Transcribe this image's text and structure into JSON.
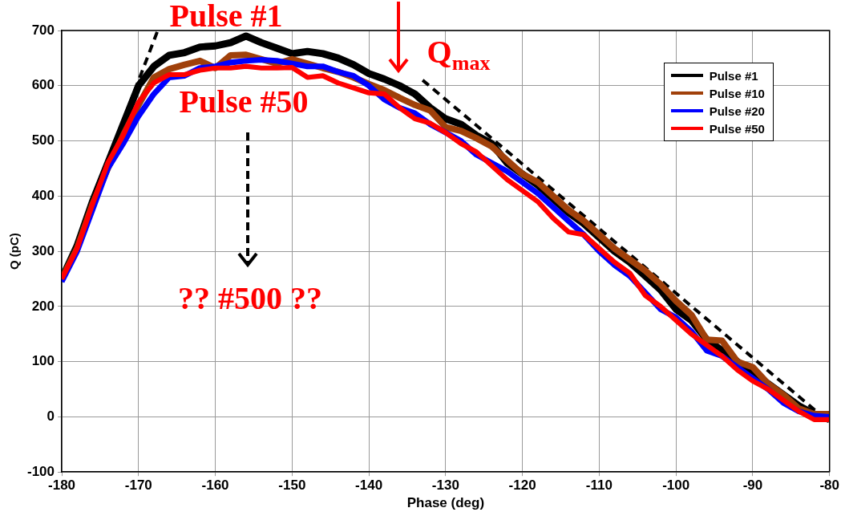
{
  "chart_data": {
    "type": "line",
    "xlabel": "Phase (deg)",
    "ylabel": "Q (pC)",
    "x": [
      -180,
      -178,
      -176,
      -174,
      -172,
      -170,
      -168,
      -166,
      -164,
      -162,
      -160,
      -158,
      -156,
      -154,
      -152,
      -150,
      -148,
      -146,
      -144,
      -142,
      -140,
      -138,
      -136,
      -134,
      -132,
      -130,
      -128,
      -126,
      -124,
      -122,
      -120,
      -118,
      -116,
      -114,
      -112,
      -110,
      -108,
      -106,
      -104,
      -102,
      -100,
      -98,
      -96,
      -94,
      -92,
      -90,
      -88,
      -86,
      -84,
      -82,
      -80
    ],
    "series": [
      {
        "name": "Pulse #1",
        "color": "#000000",
        "values": [
          250,
          310,
          390,
          460,
          530,
          600,
          635,
          655,
          660,
          670,
          672,
          678,
          690,
          678,
          668,
          658,
          662,
          658,
          650,
          638,
          622,
          612,
          600,
          585,
          560,
          540,
          530,
          510,
          495,
          460,
          440,
          420,
          395,
          370,
          350,
          325,
          300,
          280,
          255,
          230,
          195,
          175,
          140,
          120,
          100,
          80,
          60,
          40,
          20,
          5,
          -5
        ]
      },
      {
        "name": "Pulse #10",
        "color": "#a0400a",
        "values": [
          250,
          305,
          385,
          450,
          510,
          565,
          615,
          630,
          638,
          645,
          632,
          655,
          656,
          648,
          640,
          648,
          640,
          632,
          625,
          615,
          603,
          592,
          578,
          565,
          555,
          525,
          518,
          505,
          490,
          465,
          440,
          425,
          400,
          375,
          355,
          330,
          305,
          285,
          265,
          240,
          210,
          185,
          140,
          138,
          100,
          90,
          60,
          40,
          15,
          5,
          5
        ]
      },
      {
        "name": "Pulse #20",
        "color": "#0000ff",
        "values": [
          245,
          300,
          375,
          450,
          495,
          545,
          585,
          615,
          618,
          632,
          635,
          642,
          645,
          647,
          645,
          640,
          635,
          635,
          625,
          618,
          600,
          575,
          560,
          550,
          530,
          515,
          500,
          475,
          460,
          445,
          425,
          405,
          380,
          355,
          330,
          300,
          275,
          255,
          225,
          195,
          180,
          155,
          120,
          110,
          90,
          70,
          50,
          25,
          10,
          2,
          0
        ]
      },
      {
        "name": "Pulse #50",
        "color": "#ff0000",
        "values": [
          250,
          305,
          385,
          460,
          510,
          570,
          605,
          620,
          620,
          628,
          632,
          632,
          635,
          632,
          632,
          633,
          615,
          618,
          605,
          596,
          587,
          585,
          560,
          540,
          532,
          515,
          495,
          480,
          455,
          430,
          410,
          390,
          360,
          335,
          330,
          305,
          280,
          260,
          220,
          200,
          175,
          150,
          130,
          110,
          85,
          65,
          50,
          30,
          10,
          -5,
          -5
        ]
      },
      {
        "color": "#000000",
        "line_style": "dashed",
        "x": [
          -180,
          -167.5
        ],
        "values": [
          245,
          700
        ]
      },
      {
        "color": "#000000",
        "line_style": "dashed",
        "x": [
          -133,
          -80
        ],
        "values": [
          610,
          -10
        ]
      }
    ],
    "xlim": [
      -180,
      -80
    ],
    "xticks": [
      -180,
      -170,
      -160,
      -150,
      -140,
      -130,
      -120,
      -110,
      -100,
      -90,
      -80
    ],
    "ylim": [
      -100,
      700
    ],
    "yticks": [
      -100,
      0,
      100,
      200,
      300,
      400,
      500,
      600,
      700
    ],
    "grid": true,
    "legend": "top right",
    "marker": "none",
    "line_style": "solid",
    "annotations": [
      "Pulse #1",
      "Pulse #50",
      "?? #500 ??",
      "Q$_{max}$"
    ]
  }
}
